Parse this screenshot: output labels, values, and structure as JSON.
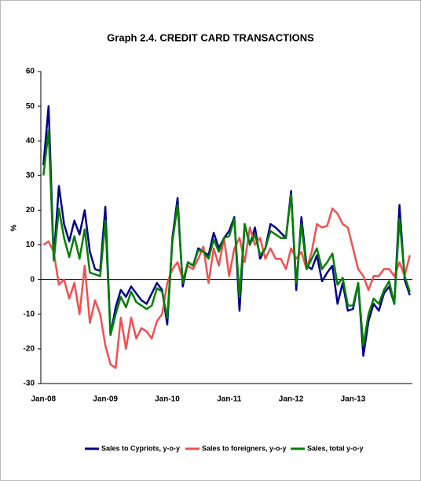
{
  "chart_data": {
    "type": "line",
    "title": "Graph 2.4. CREDIT CARD TRANSACTIONS",
    "y_label": "%",
    "categories": [
      "Jan-08",
      null,
      null,
      null,
      null,
      null,
      null,
      null,
      null,
      null,
      null,
      null,
      "Jan-09",
      null,
      null,
      null,
      null,
      null,
      null,
      null,
      null,
      null,
      null,
      null,
      "Jan-10",
      null,
      null,
      null,
      null,
      null,
      null,
      null,
      null,
      null,
      null,
      null,
      "Jan-11",
      null,
      null,
      null,
      null,
      null,
      null,
      null,
      null,
      null,
      null,
      null,
      "Jan-12",
      null,
      null,
      null,
      null,
      null,
      null,
      null,
      null,
      null,
      null,
      null,
      "Jan-13",
      null,
      null,
      null,
      null,
      null,
      null,
      null,
      null,
      null,
      null,
      null
    ],
    "series": [
      {
        "name": "Sales to Cypriots, y-o-y",
        "color": "#00008b",
        "values": [
          33,
          50,
          6,
          27,
          16,
          11,
          17,
          13,
          20,
          8,
          3,
          2.5,
          21,
          -16,
          -8,
          -3,
          -5,
          -2,
          -4,
          -6,
          -7,
          -4,
          -1,
          -3,
          -13,
          12,
          23.5,
          -2,
          5,
          4,
          9,
          8,
          7,
          13.5,
          9,
          12,
          14,
          18,
          -9,
          16,
          10,
          15,
          6,
          9,
          16,
          15,
          13.5,
          12,
          25.5,
          -3,
          18,
          4,
          3,
          7,
          -0.5,
          2,
          4,
          -7,
          -1,
          -9,
          -8.5,
          -1,
          -22,
          -12,
          -7,
          -9,
          -4,
          -2,
          -7,
          21.5,
          0,
          -4.5
        ]
      },
      {
        "name": "Sales to foreigners, y-o-y",
        "color": "#f05050",
        "values": [
          10,
          11,
          8,
          -1.5,
          0,
          -5.5,
          -1,
          -10,
          4,
          -12.5,
          -6,
          -10,
          -19,
          -24.5,
          -25.5,
          -11,
          -20,
          -11,
          -17,
          -14,
          -15,
          -17,
          -12,
          -10,
          -1,
          3,
          5,
          0,
          4,
          3,
          6,
          9.5,
          -1,
          9,
          4,
          12,
          1,
          9,
          12,
          5,
          15,
          10,
          12,
          6,
          9,
          6,
          6,
          3,
          9,
          6,
          8,
          3,
          8,
          16,
          15,
          15.5,
          20.5,
          19,
          16,
          15,
          9,
          3,
          1,
          -3,
          1,
          1,
          3,
          3,
          1,
          5,
          1,
          7
        ]
      },
      {
        "name": "Sales, total y-o-y",
        "color": "#008000",
        "values": [
          30,
          43,
          5.5,
          20.5,
          12,
          6.5,
          12.5,
          6,
          14.5,
          2,
          1.5,
          1,
          17,
          -16,
          -10,
          -5,
          -8,
          -3.5,
          -6.5,
          -7.5,
          -8.5,
          -7.5,
          -2.5,
          -3.5,
          -11,
          11,
          21.5,
          -1,
          5,
          4,
          8.5,
          8,
          6,
          11.5,
          8,
          12,
          12.5,
          17.5,
          -5,
          16,
          10,
          13,
          7,
          9,
          14,
          13,
          12,
          12,
          24.5,
          -1,
          16,
          3,
          6,
          9,
          3,
          5,
          7.5,
          -1.5,
          0.5,
          -7.5,
          -7.5,
          -1,
          -19,
          -10,
          -5.5,
          -7,
          -3,
          -0.5,
          -7,
          17.5,
          1,
          -3.5
        ]
      }
    ],
    "ylim": [
      -30,
      60
    ],
    "yticks": [
      -30,
      -20,
      -10,
      0,
      10,
      20,
      30,
      40,
      50,
      60
    ],
    "legend": "bottom"
  }
}
